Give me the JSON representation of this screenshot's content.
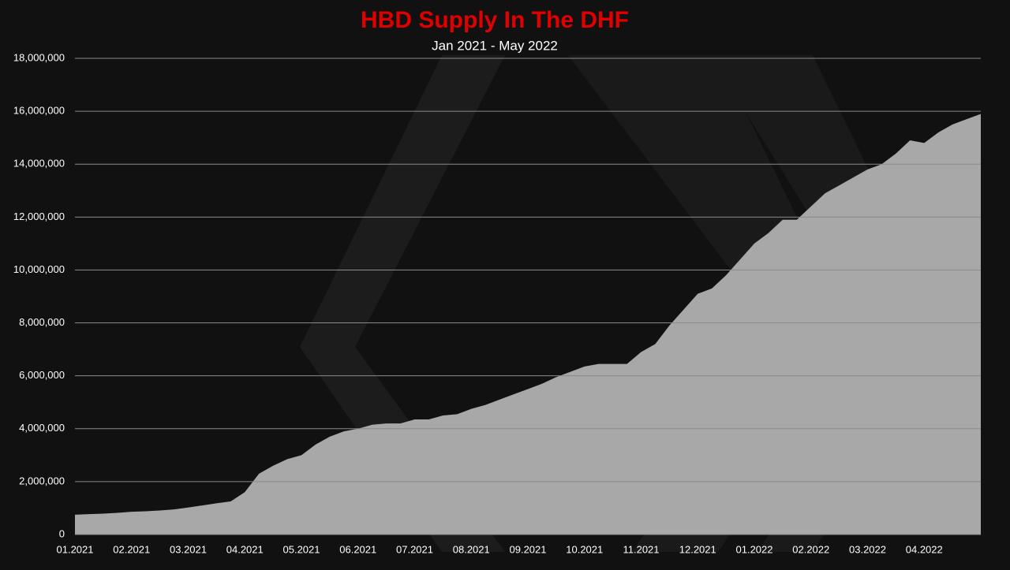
{
  "chart_data": {
    "type": "area",
    "title": "HBD Supply In The DHF",
    "subtitle": "Jan 2021 - May 2022",
    "categories": [
      "01.2021",
      null,
      null,
      null,
      "02.2021",
      null,
      null,
      null,
      "03.2021",
      null,
      null,
      null,
      "04.2021",
      null,
      null,
      null,
      "05.2021",
      null,
      null,
      null,
      "06.2021",
      null,
      null,
      null,
      "07.2021",
      null,
      null,
      null,
      "08.2021",
      null,
      null,
      null,
      "09.2021",
      null,
      null,
      null,
      "10.2021",
      null,
      null,
      null,
      "11.2021",
      null,
      null,
      null,
      "12.2021",
      null,
      null,
      null,
      "01.2022",
      null,
      null,
      null,
      "02.2022",
      null,
      null,
      null,
      "03.2022",
      null,
      null,
      null,
      "04.2022",
      null,
      null,
      null,
      null
    ],
    "values": [
      750000,
      770000,
      790000,
      820000,
      860000,
      880000,
      910000,
      950000,
      1020000,
      1100000,
      1180000,
      1250000,
      1600000,
      2300000,
      2600000,
      2850000,
      3000000,
      3400000,
      3700000,
      3900000,
      4000000,
      4150000,
      4200000,
      4200000,
      4350000,
      4350000,
      4500000,
      4550000,
      4750000,
      4900000,
      5100000,
      5300000,
      5500000,
      5700000,
      5950000,
      6150000,
      6350000,
      6450000,
      6450000,
      6450000,
      6900000,
      7200000,
      7900000,
      8500000,
      9100000,
      9300000,
      9800000,
      10400000,
      11000000,
      11400000,
      11900000,
      11900000,
      12400000,
      12900000,
      13200000,
      13500000,
      13800000,
      14000000,
      14400000,
      14900000,
      14800000,
      15200000,
      15500000,
      15700000,
      15900000
    ],
    "color": "#adadad",
    "ylim": [
      0,
      18000000
    ],
    "yticks": [
      0,
      {
        "value": 2000000,
        "label": "2,000,000"
      },
      {
        "value": 4000000,
        "label": "4,000,000"
      },
      {
        "value": 6000000,
        "label": "6,000,000"
      },
      {
        "value": 8000000,
        "label": "8,000,000"
      },
      {
        "value": 10000000,
        "label": "10,000,000"
      },
      {
        "value": 12000000,
        "label": "12,000,000"
      },
      {
        "value": 14000000,
        "label": "14,000,000"
      },
      {
        "value": 16000000,
        "label": "16,000,000"
      },
      {
        "value": 18000000,
        "label": "18,000,000"
      }
    ],
    "grid": true
  }
}
